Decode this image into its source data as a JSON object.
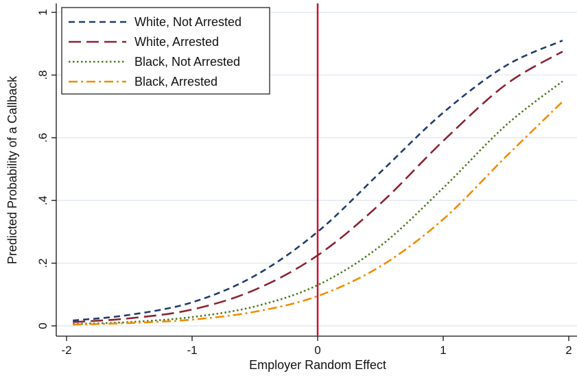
{
  "chart_data": {
    "type": "line",
    "title": "",
    "xlabel": "Employer Random Effect",
    "ylabel": "Predicted Probability of a Callback",
    "xlim": [
      -2,
      2
    ],
    "ylim": [
      0,
      1
    ],
    "x_ticks": [
      -2,
      -1,
      0,
      1,
      2
    ],
    "x_tick_labels": [
      "-2",
      "-1",
      "0",
      "1",
      "2"
    ],
    "y_ticks": [
      0,
      0.2,
      0.4,
      0.6,
      0.8,
      1
    ],
    "y_tick_labels": [
      "0",
      ".2",
      ".4",
      ".6",
      ".8",
      "1"
    ],
    "grid": "horizontal",
    "legend_position": "top-left",
    "reference_line": {
      "x": 0,
      "color": "#c8102e"
    },
    "x": [
      -1.95,
      -1.5,
      -1.0,
      -0.5,
      0.0,
      0.5,
      1.0,
      1.5,
      1.95
    ],
    "series": [
      {
        "name": "White, Not Arrested",
        "color": "#1f3d6e",
        "dash": "dashed",
        "values": [
          0.017,
          0.035,
          0.075,
          0.16,
          0.3,
          0.49,
          0.68,
          0.83,
          0.91
        ]
      },
      {
        "name": "White, Arrested",
        "color": "#8b2332",
        "dash": "longdash",
        "values": [
          0.012,
          0.024,
          0.052,
          0.115,
          0.225,
          0.39,
          0.59,
          0.77,
          0.875
        ]
      },
      {
        "name": "Black, Not Arrested",
        "color": "#4a7a1c",
        "dash": "dotted",
        "values": [
          0.006,
          0.012,
          0.028,
          0.062,
          0.13,
          0.255,
          0.44,
          0.64,
          0.78
        ]
      },
      {
        "name": "Black, Arrested",
        "color": "#f08c00",
        "dash": "dashdot",
        "values": [
          0.004,
          0.009,
          0.02,
          0.045,
          0.095,
          0.19,
          0.34,
          0.54,
          0.715
        ]
      }
    ]
  }
}
